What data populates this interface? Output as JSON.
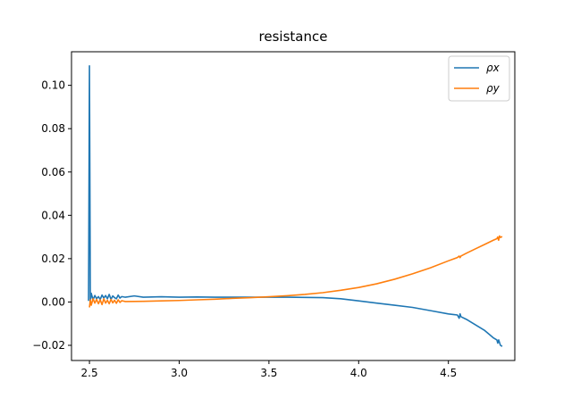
{
  "chart_data": {
    "type": "line",
    "title": "resistance",
    "xlabel": "",
    "ylabel": "",
    "xlim": [
      2.4,
      4.87
    ],
    "ylim": [
      -0.027,
      0.1155
    ],
    "xticks": [
      2.5,
      3.0,
      3.5,
      4.0,
      4.5
    ],
    "yticks": [
      -0.02,
      0.0,
      0.02,
      0.04,
      0.06,
      0.08,
      0.1
    ],
    "xtick_labels": [
      "2.5",
      "3.0",
      "3.5",
      "4.0",
      "4.5"
    ],
    "ytick_labels": [
      "−0.02",
      "0.00",
      "0.02",
      "0.04",
      "0.06",
      "0.08",
      "0.10"
    ],
    "grid": false,
    "legend_position": "top-right",
    "series": [
      {
        "name": "ρx",
        "color": "#1f77b4",
        "x": [
          2.495,
          2.5,
          2.505,
          2.51,
          2.52,
          2.53,
          2.54,
          2.55,
          2.56,
          2.57,
          2.58,
          2.59,
          2.6,
          2.61,
          2.62,
          2.63,
          2.64,
          2.65,
          2.66,
          2.67,
          2.68,
          2.7,
          2.75,
          2.8,
          2.9,
          3.0,
          3.1,
          3.2,
          3.3,
          3.4,
          3.5,
          3.6,
          3.7,
          3.8,
          3.9,
          4.0,
          4.1,
          4.2,
          4.3,
          4.4,
          4.5,
          4.55,
          4.56,
          4.565,
          4.57,
          4.6,
          4.65,
          4.7,
          4.75,
          4.77,
          4.775,
          4.78,
          4.79,
          4.8
        ],
        "y": [
          0.0005,
          0.109,
          0.0005,
          0.004,
          0.001,
          0.003,
          0.0015,
          0.0025,
          0.0012,
          0.0032,
          0.0018,
          0.003,
          0.0015,
          0.0035,
          0.0012,
          0.0028,
          0.002,
          0.0015,
          0.0032,
          0.0018,
          0.0025,
          0.0022,
          0.0028,
          0.0022,
          0.0024,
          0.0022,
          0.0023,
          0.0022,
          0.0022,
          0.0022,
          0.0022,
          0.0022,
          0.0021,
          0.002,
          0.0015,
          0.0005,
          -0.0005,
          -0.0015,
          -0.0025,
          -0.004,
          -0.0055,
          -0.006,
          -0.0075,
          -0.0055,
          -0.0068,
          -0.008,
          -0.0105,
          -0.013,
          -0.0165,
          -0.0175,
          -0.019,
          -0.0175,
          -0.02,
          -0.0205
        ]
      },
      {
        "name": "ρy",
        "color": "#ff7f0e",
        "x": [
          2.5,
          2.505,
          2.51,
          2.52,
          2.53,
          2.54,
          2.55,
          2.56,
          2.57,
          2.58,
          2.59,
          2.6,
          2.61,
          2.62,
          2.63,
          2.64,
          2.65,
          2.66,
          2.67,
          2.68,
          2.7,
          2.8,
          2.9,
          3.0,
          3.1,
          3.2,
          3.3,
          3.4,
          3.5,
          3.6,
          3.7,
          3.8,
          3.9,
          4.0,
          4.1,
          4.2,
          4.3,
          4.4,
          4.5,
          4.55,
          4.56,
          4.565,
          4.57,
          4.6,
          4.65,
          4.7,
          4.75,
          4.77,
          4.775,
          4.78,
          4.785,
          4.79,
          4.8
        ],
        "y": [
          -0.0025,
          0.001,
          -0.0015,
          0.0015,
          -0.0005,
          0.0012,
          -0.0008,
          0.001,
          -0.0012,
          0.0015,
          -0.0005,
          0.0008,
          -0.0008,
          0.0012,
          -0.0004,
          0.0008,
          -0.0006,
          0.001,
          -0.0002,
          0.0006,
          0.0002,
          0.0003,
          0.0005,
          0.0007,
          0.001,
          0.0013,
          0.0017,
          0.002,
          0.0024,
          0.0029,
          0.0035,
          0.0043,
          0.0054,
          0.0067,
          0.0084,
          0.0105,
          0.013,
          0.0158,
          0.019,
          0.0205,
          0.0212,
          0.0205,
          0.0212,
          0.0225,
          0.0245,
          0.0265,
          0.0285,
          0.0292,
          0.03,
          0.0285,
          0.0305,
          0.0298,
          0.0302
        ]
      }
    ]
  }
}
